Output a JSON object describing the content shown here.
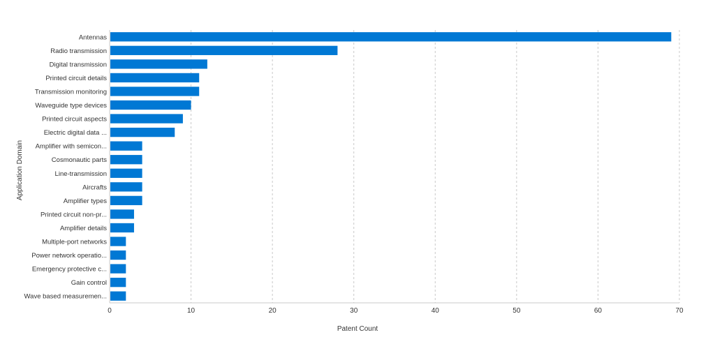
{
  "chart_data": {
    "type": "bar",
    "orientation": "horizontal",
    "xlabel": "Patent Count",
    "ylabel": "Application Domain",
    "xlim": [
      0,
      70
    ],
    "x_ticks": [
      "0",
      "10",
      "20",
      "30",
      "40",
      "50",
      "60",
      "70"
    ],
    "grid": true,
    "bar_color": "#0078d4",
    "categories": [
      "Antennas",
      "Radio transmission",
      "Digital transmission",
      "Printed circuit details",
      "Transmission monitoring",
      "Waveguide type devices",
      "Printed circuit aspects",
      "Electric digital data ...",
      "Amplifier with semicon...",
      "Cosmonautic parts",
      "Line-transmission",
      "Aircrafts",
      "Amplifier types",
      "Printed circuit non-pr...",
      "Amplifier details",
      "Multiple-port networks",
      "Power network operatio...",
      "Emergency protective c...",
      "Gain control",
      "Wave based measuremen..."
    ],
    "values": [
      69,
      28,
      12,
      11,
      11,
      10,
      9,
      8,
      4,
      4,
      4,
      4,
      4,
      3,
      3,
      2,
      2,
      2,
      2,
      2
    ]
  }
}
